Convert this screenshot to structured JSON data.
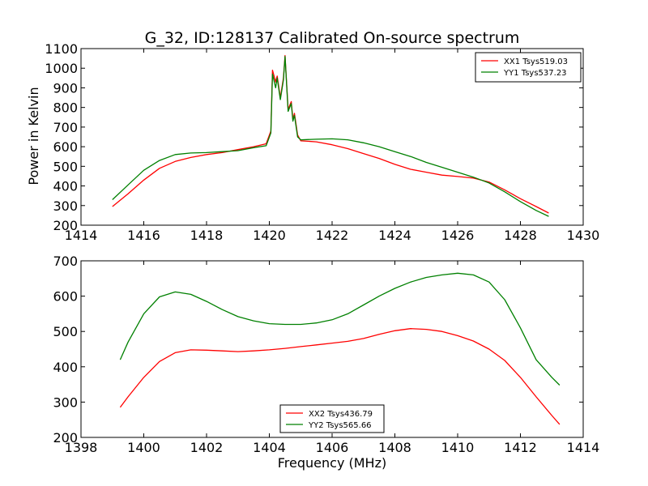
{
  "chart_data": [
    {
      "type": "line",
      "title": "G_32, ID:128137 Calibrated On-source spectrum",
      "xlabel": "",
      "ylabel": "Power in Kelvin",
      "xlim": [
        1414,
        1430
      ],
      "ylim": [
        200,
        1100
      ],
      "xticks": [
        "1414",
        "1416",
        "1418",
        "1420",
        "1422",
        "1424",
        "1426",
        "1428",
        "1430"
      ],
      "yticks": [
        "200",
        "300",
        "400",
        "500",
        "600",
        "700",
        "800",
        "900",
        "1000",
        "1100"
      ],
      "grid": false,
      "legend_position": "top-right",
      "series": [
        {
          "name": "XX1 Tsys519.03",
          "color": "#ff0000",
          "x": [
            1415.0,
            1415.5,
            1416.0,
            1416.5,
            1417.0,
            1417.5,
            1418.0,
            1418.5,
            1419.0,
            1419.5,
            1419.9,
            1420.05,
            1420.1,
            1420.2,
            1420.25,
            1420.35,
            1420.45,
            1420.5,
            1420.6,
            1420.7,
            1420.75,
            1420.8,
            1420.9,
            1421.0,
            1421.5,
            1422.0,
            1422.5,
            1423.0,
            1423.5,
            1424.0,
            1424.5,
            1425.0,
            1425.5,
            1426.0,
            1426.5,
            1427.0,
            1427.5,
            1428.0,
            1428.5,
            1428.9
          ],
          "values": [
            295,
            360,
            430,
            490,
            525,
            545,
            560,
            570,
            585,
            600,
            615,
            680,
            990,
            930,
            960,
            850,
            950,
            1065,
            790,
            830,
            740,
            770,
            660,
            630,
            625,
            610,
            590,
            565,
            540,
            510,
            485,
            470,
            455,
            448,
            440,
            420,
            380,
            335,
            295,
            262
          ]
        },
        {
          "name": "YY1 Tsys537.23",
          "color": "#008000",
          "x": [
            1415.0,
            1415.5,
            1416.0,
            1416.5,
            1417.0,
            1417.5,
            1418.0,
            1418.5,
            1419.0,
            1419.5,
            1419.9,
            1420.05,
            1420.1,
            1420.2,
            1420.25,
            1420.35,
            1420.45,
            1420.5,
            1420.6,
            1420.7,
            1420.75,
            1420.8,
            1420.9,
            1421.0,
            1421.5,
            1422.0,
            1422.5,
            1423.0,
            1423.5,
            1424.0,
            1424.5,
            1425.0,
            1425.5,
            1426.0,
            1426.5,
            1427.0,
            1427.5,
            1428.0,
            1428.5,
            1428.9
          ],
          "values": [
            330,
            405,
            480,
            530,
            560,
            568,
            570,
            575,
            580,
            595,
            605,
            670,
            970,
            900,
            950,
            840,
            940,
            1060,
            780,
            820,
            730,
            760,
            650,
            635,
            638,
            640,
            635,
            620,
            600,
            575,
            550,
            520,
            495,
            470,
            445,
            415,
            370,
            320,
            275,
            245
          ]
        }
      ]
    },
    {
      "type": "line",
      "title": "",
      "xlabel": "Frequency (MHz)",
      "ylabel": "",
      "xlim": [
        1398,
        1414
      ],
      "ylim": [
        200,
        700
      ],
      "xticks": [
        "1398",
        "1400",
        "1402",
        "1404",
        "1406",
        "1408",
        "1410",
        "1412",
        "1414"
      ],
      "yticks": [
        "200",
        "300",
        "400",
        "500",
        "600",
        "700"
      ],
      "grid": false,
      "legend_position": "bottom-center",
      "series": [
        {
          "name": "XX2 Tsys436.79",
          "color": "#ff0000",
          "x": [
            1399.25,
            1399.5,
            1400.0,
            1400.5,
            1401.0,
            1401.5,
            1402.0,
            1402.5,
            1403.0,
            1403.5,
            1404.0,
            1404.5,
            1405.0,
            1405.5,
            1406.0,
            1406.5,
            1407.0,
            1407.5,
            1408.0,
            1408.5,
            1409.0,
            1409.5,
            1410.0,
            1410.5,
            1411.0,
            1411.5,
            1412.0,
            1412.5,
            1413.0,
            1413.25
          ],
          "values": [
            285,
            315,
            370,
            415,
            440,
            448,
            447,
            445,
            443,
            445,
            448,
            452,
            457,
            462,
            467,
            472,
            480,
            492,
            502,
            508,
            506,
            500,
            488,
            473,
            450,
            418,
            370,
            315,
            262,
            237
          ]
        },
        {
          "name": "YY2 Tsys565.66",
          "color": "#008000",
          "x": [
            1399.25,
            1399.5,
            1400.0,
            1400.5,
            1401.0,
            1401.5,
            1402.0,
            1402.5,
            1403.0,
            1403.5,
            1404.0,
            1404.5,
            1405.0,
            1405.5,
            1406.0,
            1406.5,
            1407.0,
            1407.5,
            1408.0,
            1408.5,
            1409.0,
            1409.5,
            1410.0,
            1410.5,
            1411.0,
            1411.5,
            1412.0,
            1412.5,
            1413.0,
            1413.25
          ],
          "values": [
            420,
            470,
            550,
            598,
            612,
            605,
            585,
            562,
            542,
            530,
            522,
            520,
            520,
            524,
            533,
            550,
            575,
            600,
            622,
            640,
            653,
            660,
            665,
            660,
            640,
            590,
            510,
            420,
            370,
            348
          ]
        }
      ]
    }
  ]
}
